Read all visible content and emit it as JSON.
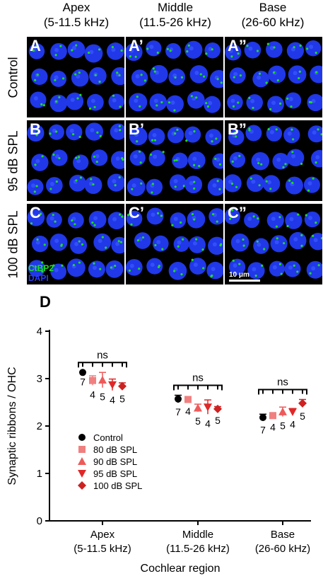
{
  "columns": [
    {
      "name": "Apex",
      "range": "(5-11.5 kHz)"
    },
    {
      "name": "Middle",
      "range": "(11.5-26 kHz)"
    },
    {
      "name": "Base",
      "range": "(26-60 kHz)"
    }
  ],
  "rows": [
    "Control",
    "95 dB SPL",
    "100 dB SPL"
  ],
  "panel_labels": [
    [
      "A",
      "A’",
      "A”"
    ],
    [
      "B",
      "B’",
      "B”"
    ],
    [
      "C",
      "C’",
      "C”"
    ]
  ],
  "stains": {
    "ctbp2": "CtBP2",
    "dapi": "DAPI"
  },
  "scale_bar": "10 μm",
  "colors": {
    "dapi": "#2038e8",
    "ctbp2": "#1edc1e",
    "control": "#000000",
    "spl80": "#f08080",
    "spl90": "#ee5a5a",
    "spl95": "#e02828",
    "spl100": "#cc2222"
  },
  "panel_d_label": "D",
  "chart_data": {
    "type": "scatter",
    "ylabel": "Synaptic ribbons / OHC",
    "xlabel": "Cochlear region",
    "ylim": [
      0,
      4
    ],
    "yticks": [
      0,
      1,
      2,
      3,
      4
    ],
    "categories": [
      "Apex\n(5-11.5 kHz)",
      "Middle\n(11.5-26 kHz)",
      "Base\n(26-60 kHz)"
    ],
    "series": [
      {
        "name": "Control",
        "marker": "circle",
        "color": "#000000",
        "values": [
          3.13,
          2.57,
          2.18
        ],
        "errors": [
          0.0,
          0.08,
          0.07
        ],
        "n": [
          7,
          7,
          7
        ]
      },
      {
        "name": "80 dB SPL",
        "marker": "square",
        "color": "#f08080",
        "values": [
          2.96,
          2.56,
          2.22
        ],
        "errors": [
          0.1,
          0.05,
          0.05
        ],
        "n": [
          4,
          4,
          4
        ]
      },
      {
        "name": "90 dB SPL",
        "marker": "triangle-up",
        "color": "#ee5a5a",
        "values": [
          2.97,
          2.38,
          2.3
        ],
        "errors": [
          0.16,
          0.08,
          0.1
        ],
        "n": [
          5,
          5,
          5
        ]
      },
      {
        "name": "95 dB SPL",
        "marker": "triangle-down",
        "color": "#e02828",
        "values": [
          2.87,
          2.4,
          2.3
        ],
        "errors": [
          0.12,
          0.15,
          0.07
        ],
        "n": [
          4,
          4,
          4
        ]
      },
      {
        "name": "100 dB SPL",
        "marker": "diamond",
        "color": "#cc2222",
        "values": [
          2.84,
          2.36,
          2.48
        ],
        "errors": [
          0.07,
          0.05,
          0.08
        ],
        "n": [
          5,
          5,
          5
        ]
      }
    ],
    "annotations": [
      "ns",
      "ns",
      "ns"
    ],
    "legend_position": "center-left",
    "grid": false
  }
}
